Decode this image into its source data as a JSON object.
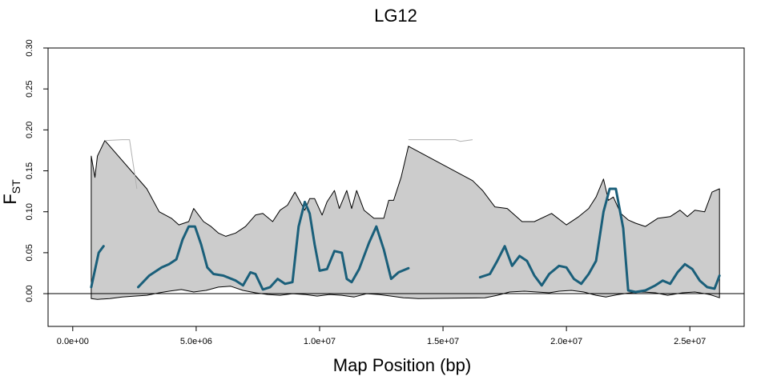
{
  "chart_data": {
    "type": "line",
    "title": "LG12",
    "xlabel": "Map Position (bp)",
    "ylabel_main": "F",
    "ylabel_sub": "ST",
    "xlim": [
      -1000000,
      27200000
    ],
    "ylim": [
      -0.04,
      0.3
    ],
    "x_ticks": [
      {
        "value": 0,
        "label": "0.0e+00"
      },
      {
        "value": 5000000,
        "label": "5.0e+06"
      },
      {
        "value": 10000000,
        "label": "1.0e+07"
      },
      {
        "value": 15000000,
        "label": "1.5e+07"
      },
      {
        "value": 20000000,
        "label": "2.0e+07"
      },
      {
        "value": 25000000,
        "label": "2.5e+07"
      }
    ],
    "y_ticks": [
      {
        "value": 0.0,
        "label": "0.00"
      },
      {
        "value": 0.05,
        "label": "0.05"
      },
      {
        "value": 0.1,
        "label": "0.10"
      },
      {
        "value": 0.15,
        "label": "0.15"
      },
      {
        "value": 0.2,
        "label": "0.20"
      },
      {
        "value": 0.25,
        "label": "0.25"
      },
      {
        "value": 0.3,
        "label": "0.30"
      }
    ],
    "reference_line_y": 0.0,
    "colors": {
      "band_fill": "#cccccc",
      "band_edge": "#000000",
      "series_line": "#1a5f7a",
      "reference": "#000000",
      "gap_line": "#b0b0b0"
    },
    "band_upper": {
      "x": [
        750000,
        900000,
        1000000,
        1300000,
        3000000,
        3500000,
        4000000,
        4300000,
        4700000,
        4900000,
        5300000,
        5600000,
        5900000,
        6200000,
        6600000,
        7000000,
        7400000,
        7700000,
        8100000,
        8400000,
        8700000,
        9000000,
        9400000,
        9600000,
        9800000,
        10100000,
        10300000,
        10600000,
        10800000,
        11100000,
        11300000,
        11500000,
        11800000,
        12200000,
        12600000,
        12800000,
        13000000,
        13300000,
        13600000,
        16200000,
        16600000,
        17100000,
        17600000,
        18200000,
        18700000,
        19400000,
        20000000,
        20500000,
        20900000,
        21200000,
        21500000,
        21700000,
        21900000,
        22200000,
        22500000,
        22800000,
        23200000,
        23700000,
        24200000,
        24600000,
        24900000,
        25200000,
        25600000,
        25900000,
        26200000
      ],
      "y": [
        0.168,
        0.142,
        0.168,
        0.187,
        0.128,
        0.1,
        0.092,
        0.084,
        0.088,
        0.104,
        0.088,
        0.082,
        0.074,
        0.07,
        0.074,
        0.082,
        0.096,
        0.098,
        0.088,
        0.102,
        0.108,
        0.124,
        0.102,
        0.116,
        0.116,
        0.096,
        0.112,
        0.126,
        0.104,
        0.126,
        0.104,
        0.126,
        0.102,
        0.092,
        0.092,
        0.114,
        0.114,
        0.142,
        0.18,
        0.138,
        0.126,
        0.106,
        0.104,
        0.088,
        0.088,
        0.098,
        0.084,
        0.094,
        0.104,
        0.118,
        0.14,
        0.114,
        0.118,
        0.098,
        0.09,
        0.086,
        0.082,
        0.092,
        0.094,
        0.102,
        0.094,
        0.102,
        0.1,
        0.124,
        0.128
      ]
    },
    "band_lower": {
      "x": [
        26200000,
        25800000,
        25200000,
        24700000,
        24100000,
        23600000,
        23100000,
        22600000,
        22100000,
        21600000,
        21200000,
        20700000,
        20200000,
        19700000,
        19300000,
        18800000,
        18300000,
        17700000,
        17200000,
        16700000,
        14000000,
        13400000,
        12900000,
        12400000,
        11900000,
        11400000,
        10900000,
        10400000,
        9900000,
        9400000,
        8900000,
        8400000,
        7900000,
        7400000,
        6900000,
        6400000,
        5900000,
        5400000,
        4900000,
        4400000,
        3900000,
        3500000,
        3000000,
        2500000,
        2000000,
        1500000,
        1000000,
        750000
      ],
      "y": [
        -0.005,
        -0.001,
        0.002,
        0.001,
        -0.002,
        0.001,
        0.002,
        0.001,
        -0.001,
        -0.004,
        -0.002,
        0.002,
        0.004,
        0.003,
        0.001,
        0.002,
        0.003,
        0.002,
        -0.002,
        -0.005,
        -0.006,
        -0.005,
        -0.003,
        -0.001,
        0.0,
        -0.004,
        -0.002,
        -0.001,
        -0.003,
        -0.001,
        0.0,
        -0.002,
        -0.001,
        0.001,
        0.004,
        0.009,
        0.008,
        0.004,
        0.002,
        0.005,
        0.003,
        0.001,
        -0.002,
        -0.003,
        -0.004,
        -0.006,
        -0.007,
        -0.006
      ]
    },
    "gap_lines": [
      {
        "x": [
          1300000,
          2000000,
          2300000,
          2600000
        ],
        "y": [
          0.187,
          0.188,
          0.188,
          0.128
        ]
      },
      {
        "x": [
          13600000,
          14000000,
          15500000,
          15700000,
          16200000
        ],
        "y": [
          0.188,
          0.188,
          0.188,
          0.186,
          0.188
        ]
      }
    ],
    "series": [
      {
        "x": [
          750000,
          1050000,
          1250000
        ],
        "y": [
          0.008,
          0.05,
          0.058
        ]
      },
      {
        "x": [
          2650000,
          3100000,
          3600000,
          3900000,
          4200000,
          4450000,
          4700000,
          4950000,
          5200000,
          5450000,
          5700000,
          6100000,
          6600000,
          6900000,
          7200000,
          7400000,
          7700000,
          8000000,
          8300000,
          8600000,
          8900000,
          9150000,
          9400000,
          9600000,
          9800000,
          10000000,
          10300000,
          10600000,
          10900000,
          11100000,
          11300000,
          11600000,
          12000000,
          12300000,
          12600000,
          12900000,
          13200000,
          13600000
        ],
        "y": [
          0.008,
          0.022,
          0.032,
          0.036,
          0.042,
          0.066,
          0.082,
          0.082,
          0.06,
          0.032,
          0.024,
          0.022,
          0.016,
          0.01,
          0.026,
          0.024,
          0.005,
          0.008,
          0.018,
          0.012,
          0.014,
          0.082,
          0.112,
          0.098,
          0.06,
          0.028,
          0.03,
          0.052,
          0.05,
          0.018,
          0.014,
          0.03,
          0.062,
          0.082,
          0.054,
          0.018,
          0.026,
          0.031
        ]
      },
      {
        "x": [
          16500000,
          16900000,
          17200000,
          17500000,
          17800000,
          18100000,
          18400000,
          18700000,
          19000000,
          19300000,
          19700000,
          20000000,
          20300000,
          20600000,
          20900000,
          21200000,
          21500000,
          21750000,
          22000000,
          22300000,
          22500000,
          22800000,
          23200000,
          23600000,
          23900000,
          24200000,
          24500000,
          24800000,
          25100000,
          25400000,
          25700000,
          26000000,
          26200000
        ],
        "y": [
          0.02,
          0.024,
          0.04,
          0.058,
          0.034,
          0.046,
          0.04,
          0.022,
          0.01,
          0.024,
          0.034,
          0.032,
          0.018,
          0.012,
          0.024,
          0.04,
          0.1,
          0.128,
          0.128,
          0.08,
          0.004,
          0.002,
          0.004,
          0.01,
          0.016,
          0.012,
          0.026,
          0.036,
          0.03,
          0.016,
          0.008,
          0.006,
          0.022
        ]
      }
    ]
  }
}
